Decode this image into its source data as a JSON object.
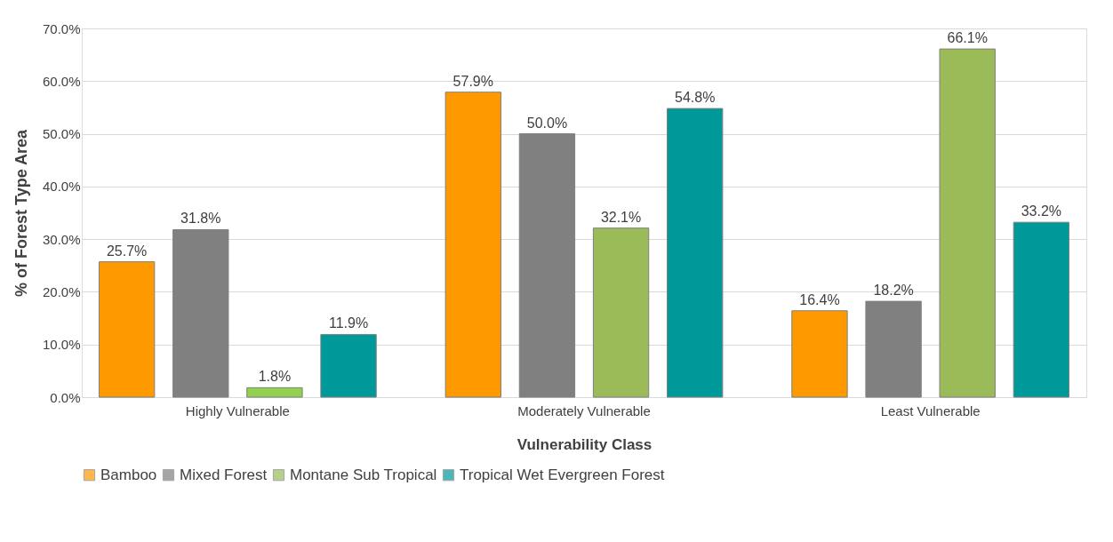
{
  "chart_data": {
    "type": "bar",
    "xlabel": "Vulnerability Class",
    "ylabel": "% of Forest Type Area",
    "categories": [
      "Highly Vulnerable",
      "Moderately Vulnerable",
      "Least Vulnerable"
    ],
    "series": [
      {
        "name": "Bamboo",
        "color": "#ff9900",
        "values": [
          25.7,
          57.9,
          16.4
        ],
        "value_labels": [
          "25.7%",
          "57.9%",
          "16.4%"
        ]
      },
      {
        "name": "Mixed Forest",
        "color": "#808080",
        "values": [
          31.8,
          50.0,
          18.2
        ],
        "value_labels": [
          "31.8%",
          "50.0%",
          "18.2%"
        ]
      },
      {
        "name": "Montane Sub Tropical",
        "color": "#9bbb59",
        "colors": [
          "#92d050",
          "#9bbb59",
          "#9bbb59"
        ],
        "values": [
          1.8,
          32.1,
          66.1
        ],
        "value_labels": [
          "1.8%",
          "32.1%",
          "66.1%"
        ]
      },
      {
        "name": "Tropical Wet Evergreen Forest",
        "color": "#009999",
        "values": [
          11.9,
          54.8,
          33.2
        ],
        "value_labels": [
          "11.9%",
          "54.8%",
          "33.2%"
        ]
      }
    ],
    "ylim": [
      0,
      70
    ],
    "yticks": [
      {
        "value": 0,
        "label": "0.0%"
      },
      {
        "value": 10,
        "label": "10.0%"
      },
      {
        "value": 20,
        "label": "20.0%"
      },
      {
        "value": 30,
        "label": "30.0%"
      },
      {
        "value": 40,
        "label": "40.0%"
      },
      {
        "value": 50,
        "label": "50.0%"
      },
      {
        "value": 60,
        "label": "60.0%"
      },
      {
        "value": 70,
        "label": "70.0%"
      }
    ],
    "grid": "y",
    "legend": "bottom"
  }
}
